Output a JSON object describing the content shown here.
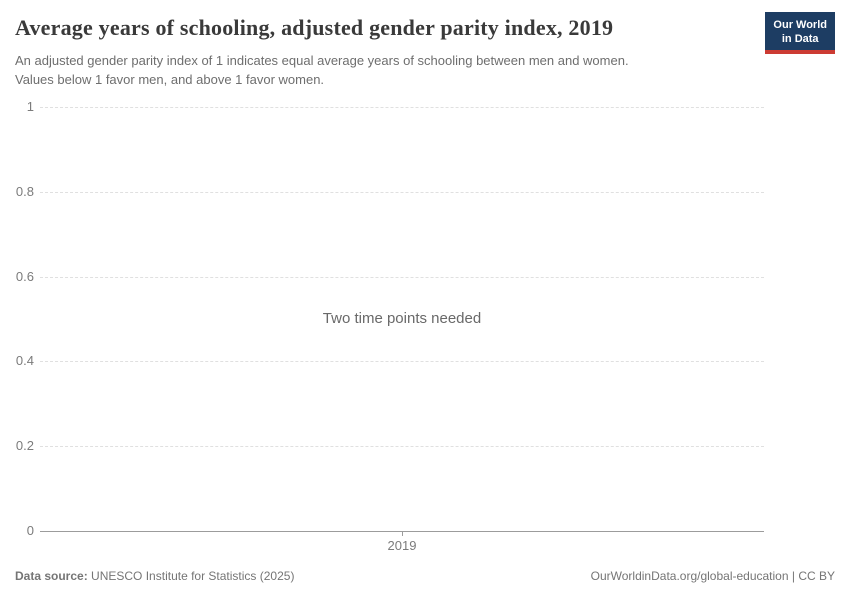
{
  "header": {
    "title": "Average years of schooling, adjusted gender parity index, 2019",
    "subtitle_lines": [
      "An adjusted gender parity index of 1 indicates equal average years of schooling between men and women.",
      "Values below 1 favor men, and above 1 favor women."
    ],
    "logo": {
      "line1": "Our World",
      "line2": "in Data",
      "bg_color": "#1d3d63",
      "stripe_color": "#cc3b33"
    }
  },
  "chart_data": {
    "type": "line",
    "title": "Average years of schooling, adjusted gender parity index, 2019",
    "note": "Two time points needed",
    "series": [],
    "x_ticks": [
      "2019"
    ],
    "y_ticks": [
      0,
      0.2,
      0.4,
      0.6,
      0.8,
      1
    ],
    "ylim": [
      0,
      1
    ],
    "grid": "horizontal-dashed",
    "legend": "none",
    "colors": {
      "gridline": "#e0e0e0",
      "axis_line": "#9c9c9c",
      "tick_label": "#7b7b7b",
      "note_text": "#696969"
    }
  },
  "footer": {
    "source_label": "Data source:",
    "source_text": "UNESCO Institute for Statistics (2025)",
    "link_text": "OurWorldinData.org/global-education | CC BY"
  }
}
